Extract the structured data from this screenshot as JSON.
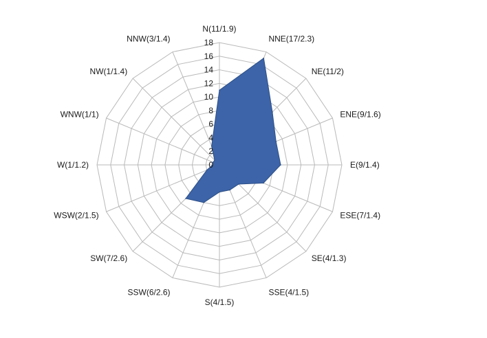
{
  "chart_data": {
    "type": "radar",
    "colors": {
      "fill": "#3d64a8",
      "stroke": "#2c4f86",
      "grid": "#b9b9b9"
    },
    "categories": [
      "N(11/1.9)",
      "NNE(17/2.3)",
      "NE(11/2)",
      "ENE(9/1.6)",
      "E(9/1.4)",
      "ESE(7/1.4)",
      "SE(4/1.3)",
      "SSE(4/1.5)",
      "S(4/1.5)",
      "SSW(6/2.6)",
      "SW(7/2.6)",
      "WSW(2/1.5)",
      "W(1/1.2)",
      "WNW(1/1)",
      "NW(1/1.4)",
      "NNW(3/1.4)"
    ],
    "series": [
      {
        "values": [
          11,
          17,
          11,
          9,
          9,
          7,
          4,
          4,
          4,
          6,
          7,
          2,
          1,
          1,
          1,
          3
        ]
      }
    ],
    "rlim": [
      0,
      18
    ],
    "ticks": [
      "0",
      "2",
      "4",
      "6",
      "8",
      "10",
      "12",
      "14",
      "16",
      "18"
    ],
    "grid": true,
    "legend": false
  }
}
